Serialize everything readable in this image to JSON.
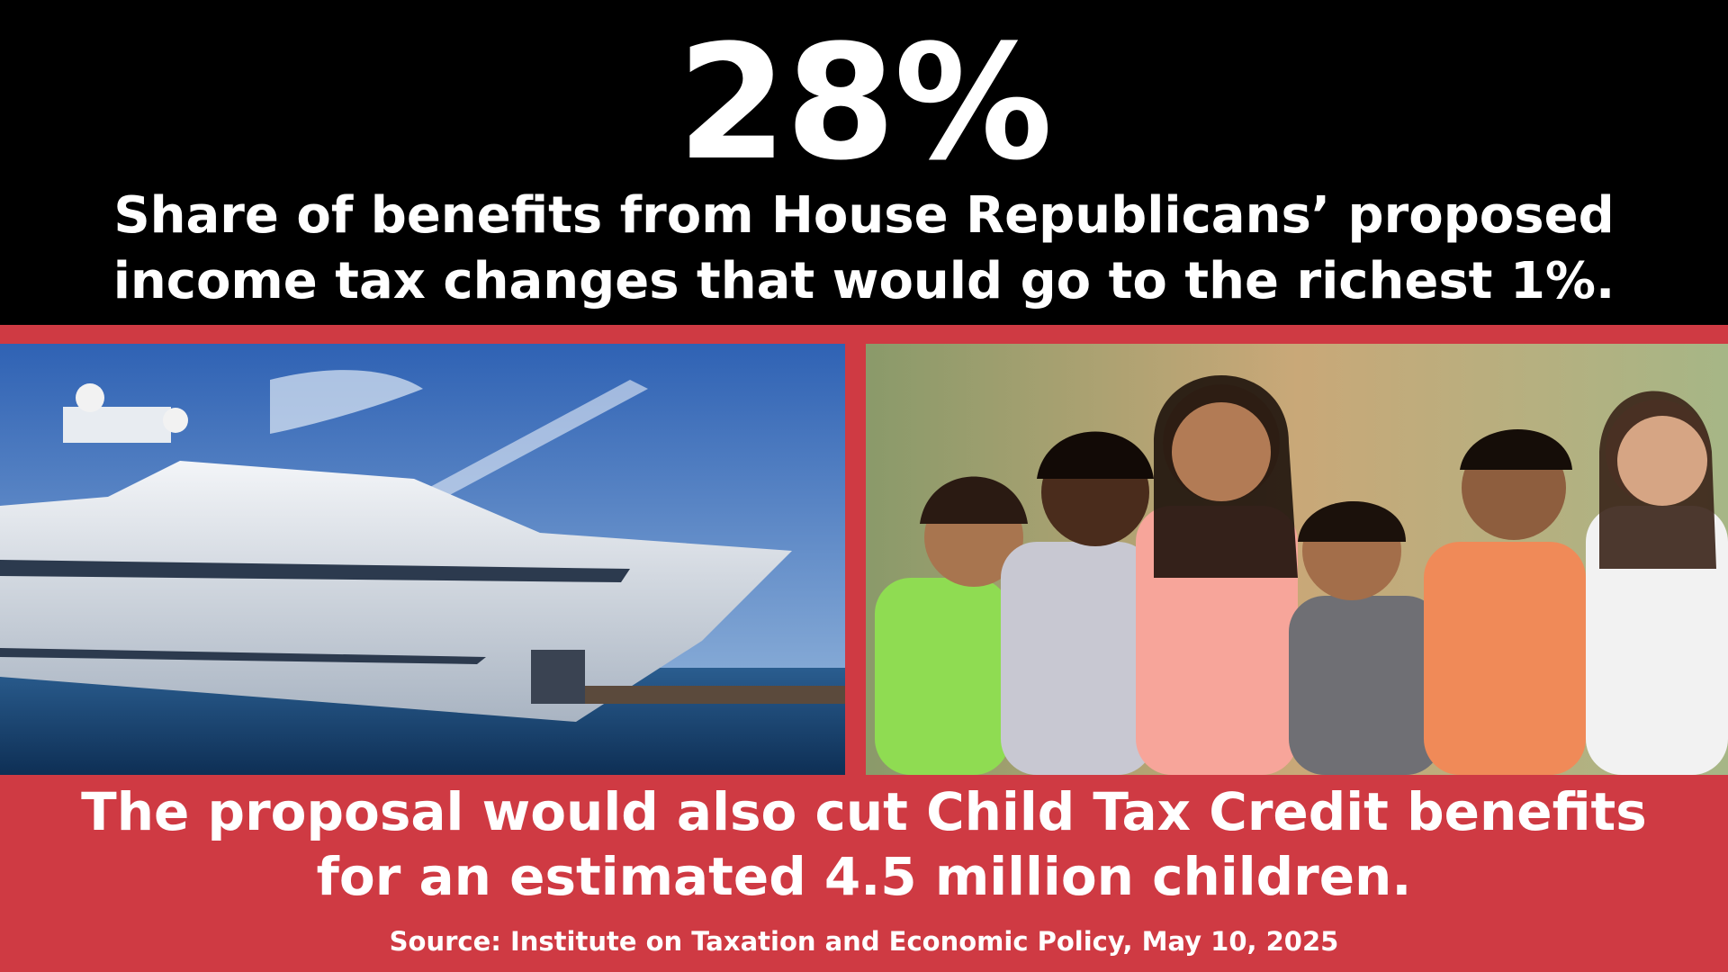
{
  "headline": {
    "stat": "28%",
    "description": [
      "Share of benefits from House Republicans’ proposed",
      "income tax changes that would go to the richest 1%."
    ]
  },
  "footer": {
    "text": [
      "The proposal would also cut Child Tax Credit benefits",
      "for an estimated 4.5 million children."
    ],
    "source": "Source: Institute on Taxation and Economic Policy, May 10, 2025"
  }
}
